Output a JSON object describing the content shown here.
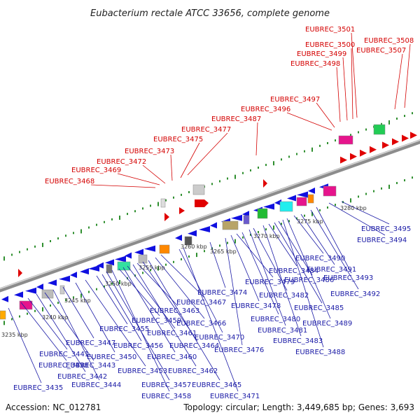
{
  "title": "Eubacterium rectale ATCC 33656, complete genome",
  "accession": "Accession: NC_012781",
  "topology": "Topology: circular; Length: 3,449,685 bp; Genes: 3,693",
  "colors": {
    "forward_gene": "#e00000",
    "reverse_gene": "#1010e0",
    "forward_label": "#d40000",
    "reverse_label": "#1a1aa6",
    "backbone": "#8c8c8c",
    "tick": "#2f8f2f"
  },
  "kbp_ticks": [
    "3235 kbp",
    "3240 kbp",
    "3245 kbp",
    "3250 kbp",
    "3255 kbp",
    "3260 kbp",
    "3265 kbp",
    "3270 kbp",
    "3275 kbp",
    "3280 kbp"
  ],
  "forward_genes": [
    "EUBREC_3468",
    "EUBREC_3469",
    "EUBREC_3472",
    "EUBREC_3473",
    "EUBREC_3475",
    "EUBREC_3477",
    "EUBREC_3487",
    "EUBREC_3496",
    "EUBREC_3497",
    "EUBREC_3498",
    "EUBREC_3499",
    "EUBREC_3500",
    "EUBREC_3501",
    "EUBREC_3507",
    "EUBREC_3508"
  ],
  "reverse_genes": [
    "EUBREC_3435",
    "EUBREC_3438",
    "EUBREC_3441",
    "EUBREC_3442",
    "EUBREC_3443",
    "EUBREC_3444",
    "EUBREC_3447",
    "EUBREC_3450",
    "EUBREC_3453",
    "EUBREC_3455",
    "EUBREC_3456",
    "EUBREC_3457",
    "EUBREC_3458",
    "EUBREC_3459",
    "EUBREC_3460",
    "EUBREC_3461",
    "EUBREC_3462",
    "EUBREC_3463",
    "EUBREC_3464",
    "EUBREC_3465",
    "EUBREC_3466",
    "EUBREC_3467",
    "EUBREC_3470",
    "EUBREC_3471",
    "EUBREC_3474",
    "EUBREC_3476",
    "EUBREC_3478",
    "EUBREC_3479",
    "EUBREC_3480",
    "EUBREC_3481",
    "EUBREC_3482",
    "EUBREC_3483",
    "EUBREC_3484",
    "EUBREC_3485",
    "EUBREC_3486",
    "EUBREC_3488",
    "EUBREC_3489",
    "EUBREC_3490",
    "EUBREC_3491",
    "EUBREC_3492",
    "EUBREC_3493",
    "EUBREC_3494",
    "EUBREC_3495"
  ]
}
